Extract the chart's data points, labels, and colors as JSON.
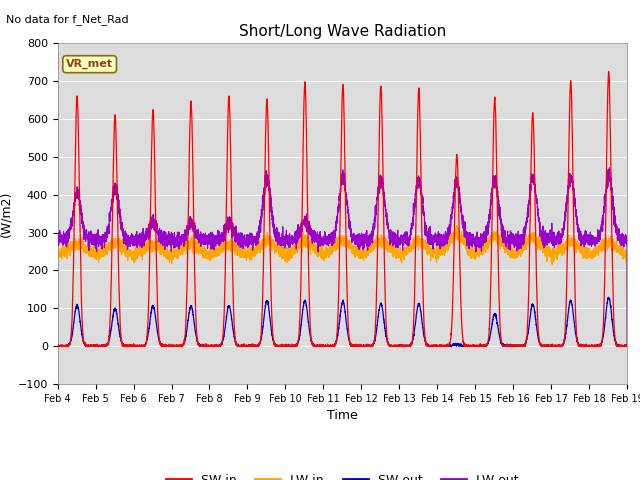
{
  "title": "Short/Long Wave Radiation",
  "ylabel": "(W/m2)",
  "xlabel": "Time",
  "ylim": [
    -100,
    800
  ],
  "yticks": [
    -100,
    0,
    100,
    200,
    300,
    400,
    500,
    600,
    700,
    800
  ],
  "plot_bg_color": "#dcdcdc",
  "fig_bg_color": "#ffffff",
  "sw_in_color": "#ff0000",
  "lw_in_color": "#ffa500",
  "sw_out_color": "#0000cc",
  "lw_out_color": "#9900cc",
  "no_data_text": "No data for f_Net_Rad",
  "station_label": "VR_met",
  "num_days": 15,
  "start_day": 4,
  "points_per_day": 288,
  "sw_in_peaks": [
    660,
    610,
    625,
    645,
    660,
    650,
    695,
    690,
    685,
    680,
    505,
    655,
    615,
    700,
    725
  ],
  "sw_out_peaks": [
    108,
    100,
    106,
    106,
    106,
    120,
    120,
    118,
    112,
    112,
    5,
    85,
    110,
    120,
    128
  ],
  "lw_in_base": 240,
  "lw_in_noise": 8,
  "lw_out_base": 280,
  "lw_out_noise": 10,
  "lw_in_day_deltas": [
    30,
    32,
    30,
    30,
    28,
    40,
    38,
    40,
    38,
    38,
    55,
    50,
    48,
    35,
    32
  ],
  "lw_out_day_peaks": [
    400,
    415,
    325,
    325,
    325,
    445,
    330,
    445,
    440,
    440,
    435,
    435,
    445,
    445,
    450
  ],
  "lw_out_sigma": 2.5,
  "sw_sigma": 1.5,
  "peak_hour": 12.3,
  "grid_color": "#c8c8c8",
  "sw_linewidth": 0.9,
  "lw_linewidth": 0.9
}
